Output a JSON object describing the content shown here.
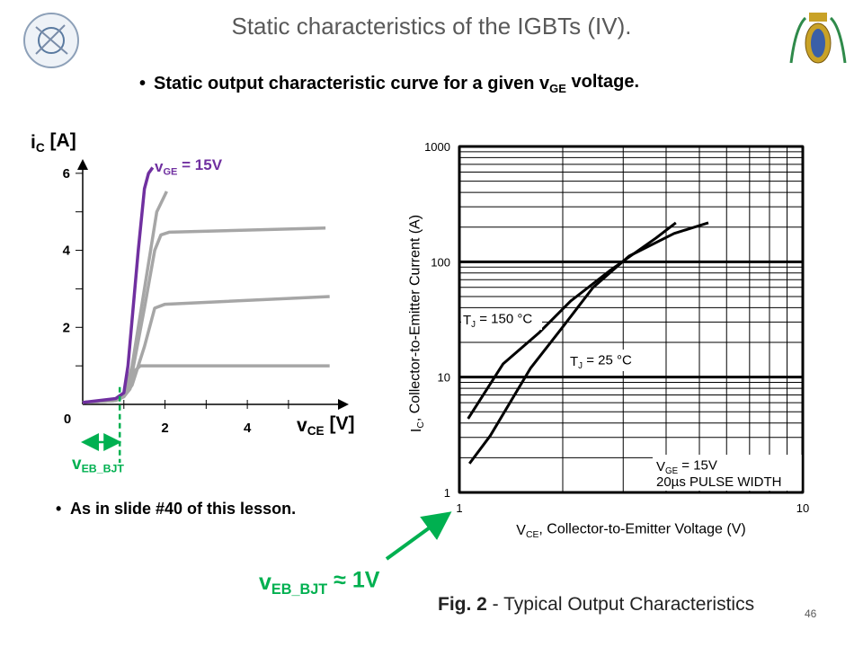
{
  "slide": {
    "title": "Static characteristics of the IGBTs (IV).",
    "bullet": {
      "text": "Static output characteristic curve for a given v",
      "sub": "GE",
      "tail": " voltage."
    },
    "note": "As in slide #40 of this lesson.",
    "callout": {
      "text": "v",
      "sub": "EB_BJT",
      "tail": " ≈ 1V"
    },
    "caption": {
      "bold": "Fig. 2",
      "text": " - Typical Output Characteristics"
    },
    "page_number": "46"
  },
  "chart_data": [
    {
      "type": "line",
      "ylabel": {
        "text": "i",
        "sub": "C",
        "tail": " [A]"
      },
      "xlabel": {
        "text": "v",
        "sub": "CE",
        "tail": " [V]"
      },
      "xlim": [
        0,
        6.4
      ],
      "ylim": [
        0,
        6.3
      ],
      "xticks": [
        0,
        2,
        4
      ],
      "xminor": [
        1,
        3,
        5
      ],
      "yticks": [
        2,
        4,
        6
      ],
      "yminor": [
        1,
        3,
        5
      ],
      "series": [
        {
          "color": "#a6a6a6",
          "x": [
            0,
            0.8,
            1.0,
            1.15,
            1.27,
            1.4,
            6.0
          ],
          "values": [
            0.05,
            0.1,
            0.2,
            0.4,
            0.88,
            1.0,
            1.0
          ]
        },
        {
          "color": "#a6a6a6",
          "x": [
            0,
            0.8,
            1.0,
            1.2,
            1.5,
            1.75,
            2.0,
            6.0
          ],
          "values": [
            0.05,
            0.1,
            0.2,
            0.5,
            1.5,
            2.5,
            2.6,
            2.8
          ]
        },
        {
          "color": "#a6a6a6",
          "x": [
            0,
            0.8,
            1.0,
            1.2,
            1.5,
            1.75,
            1.9,
            2.1,
            5.9
          ],
          "values": [
            0.05,
            0.1,
            0.2,
            0.8,
            2.5,
            4.0,
            4.4,
            4.47,
            4.58
          ]
        },
        {
          "color": "#a6a6a6",
          "x": [
            0,
            0.8,
            1.0,
            1.2,
            1.5,
            1.8,
            2.04
          ],
          "values": [
            0.05,
            0.1,
            0.2,
            1.0,
            3.0,
            5.0,
            5.53
          ]
        },
        {
          "color": "#7030a0",
          "x": [
            0,
            0.8,
            1.0,
            1.1,
            1.2,
            1.35,
            1.5,
            1.6,
            1.7
          ],
          "values": [
            0.05,
            0.15,
            0.3,
            1.0,
            2.2,
            4.0,
            5.6,
            6.0,
            6.15
          ]
        }
      ],
      "annotation": {
        "text": "v",
        "sub": "GE",
        "tail": " = 15V"
      },
      "marker": {
        "x": 0.9,
        "color": "#00b050",
        "label": {
          "text": "v",
          "sub": "EB_BJT"
        }
      }
    },
    {
      "type": "line",
      "log_scale": true,
      "ylabel": {
        "text": "I",
        "sub": "C",
        "tail": ",  Collector-to-Emitter Current (A)"
      },
      "xlabel": {
        "text": "V",
        "sub": "CE",
        "tail": ", Collector-to-Emitter Voltage (V)"
      },
      "xlim": [
        1,
        10
      ],
      "ylim": [
        1,
        1000
      ],
      "xticks": [
        1,
        10
      ],
      "xminor": [
        2,
        3,
        4,
        5,
        6,
        7,
        8,
        9
      ],
      "yticks": [
        1,
        10,
        100,
        1000
      ],
      "yminor": [
        2,
        3,
        4,
        5,
        6,
        7,
        8,
        9,
        20,
        30,
        40,
        50,
        60,
        70,
        80,
        90,
        200,
        300,
        400,
        500,
        600,
        700,
        800,
        900
      ],
      "series": [
        {
          "name": {
            "text": "T",
            "sub": "J",
            "tail": " = 150 °C"
          },
          "color": "#000000",
          "x": [
            1.06,
            1.34,
            1.71,
            2.11,
            2.77,
            3.74,
            4.27
          ],
          "values": [
            4.36,
            13,
            24.4,
            45.7,
            85.7,
            161,
            218
          ]
        },
        {
          "name": {
            "text": "T",
            "sub": "J",
            "tail": " = 25 °C"
          },
          "color": "#000000",
          "x": [
            1.07,
            1.23,
            1.61,
            1.99,
            2.45,
            3.12,
            4.22,
            5.31
          ],
          "values": [
            1.78,
            3.1,
            11.9,
            26.7,
            59.8,
            112,
            176,
            218
          ]
        }
      ],
      "notes": [
        {
          "text": "V",
          "sub": "GE",
          "tail": " = 15V"
        },
        {
          "text": "20µs PULSE WIDTH"
        }
      ]
    }
  ]
}
